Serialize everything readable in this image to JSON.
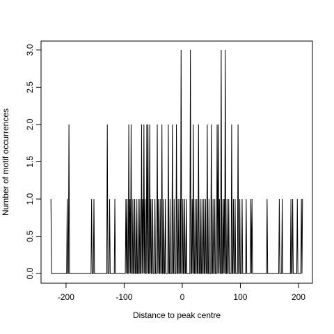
{
  "chart_data": {
    "type": "line",
    "xlabel": "Distance to peak centre",
    "ylabel": "Number of motif occurrences",
    "xlim": [
      -243,
      224
    ],
    "ylim": [
      -0.13,
      3.12
    ],
    "xticks": [
      -200,
      -100,
      0,
      100,
      200
    ],
    "yticks": [
      {
        "value": 0,
        "label": "0.0"
      },
      0.5,
      {
        "value": 1,
        "label": "1.0"
      },
      1.5,
      {
        "value": 2,
        "label": "2.0"
      },
      2.5,
      {
        "value": 3,
        "label": "3.0"
      }
    ],
    "color": "#000000",
    "x": [
      -226,
      -225,
      -199,
      -198,
      -197,
      -196,
      -195,
      -194,
      -157,
      -156,
      -155,
      -153,
      -152,
      -151,
      -130,
      -129,
      -128,
      -126,
      -125,
      -124,
      -117,
      -116,
      -115,
      -98,
      -97,
      -96,
      -95,
      -94,
      -93,
      -92,
      -91,
      -90,
      -89,
      -88,
      -87,
      -86,
      -85,
      -84,
      -83,
      -82,
      -81,
      -80,
      -79,
      -78,
      -77,
      -76,
      -75,
      -74,
      -73,
      -72,
      -71,
      -70,
      -69,
      -68,
      -67,
      -66,
      -65,
      -64,
      -63,
      -62,
      -61,
      -60,
      -59,
      -58,
      -57,
      -56,
      -55,
      -54,
      -53,
      -52,
      -51,
      -50,
      -48,
      -47,
      -46,
      -44,
      -43,
      -42,
      -41,
      -40,
      -39,
      -38,
      -37,
      -36,
      -35,
      -34,
      -33,
      -32,
      -31,
      -30,
      -29,
      -28,
      -25,
      -24,
      -23,
      -22,
      -21,
      -20,
      -18,
      -17,
      -16,
      -15,
      -14,
      -13,
      -11,
      -10,
      -9,
      -8,
      -7,
      -6,
      -5,
      -4,
      -3,
      -2,
      -1,
      0,
      1,
      2,
      3,
      4,
      5,
      6,
      7,
      8,
      13,
      14,
      15,
      16,
      17,
      18,
      19,
      20,
      21,
      22,
      23,
      24,
      25,
      26,
      27,
      28,
      29,
      30,
      31,
      32,
      33,
      34,
      35,
      36,
      37,
      38,
      39,
      40,
      41,
      42,
      43,
      44,
      45,
      46,
      47,
      49,
      50,
      51,
      52,
      53,
      54,
      55,
      56,
      57,
      59,
      60,
      61,
      62,
      63,
      64,
      65,
      66,
      67,
      68,
      69,
      70,
      71,
      72,
      73,
      74,
      75,
      76,
      77,
      78,
      79,
      80,
      81,
      84,
      85,
      86,
      87,
      88,
      89,
      90,
      91,
      92,
      95,
      96,
      97,
      98,
      99,
      100,
      102,
      103,
      104,
      109,
      110,
      111,
      117,
      118,
      119,
      120,
      121,
      145,
      146,
      147,
      166,
      167,
      168,
      171,
      172,
      173,
      186,
      187,
      188,
      189,
      190,
      191,
      197,
      198,
      199,
      204,
      205,
      206,
      207
    ],
    "values": [
      1,
      0,
      0,
      1,
      0,
      0,
      2,
      0,
      0,
      1,
      0,
      0,
      1,
      0,
      0,
      2,
      0,
      0,
      1,
      0,
      0,
      1,
      0,
      0,
      1,
      0,
      1,
      0,
      0,
      2,
      0,
      1,
      0,
      2,
      0,
      0,
      1,
      0,
      0,
      1,
      0,
      0,
      1,
      0,
      0,
      1,
      0,
      0,
      1,
      0,
      0,
      2,
      0,
      1,
      0,
      2,
      0,
      1,
      0,
      0,
      2,
      0,
      2,
      0,
      0,
      2,
      0,
      1,
      0,
      0,
      1,
      0,
      0,
      1,
      0,
      0,
      2,
      0,
      1,
      0,
      0,
      1,
      0,
      0,
      2,
      0,
      0,
      1,
      0,
      0,
      1,
      0,
      0,
      2,
      0,
      0,
      1,
      0,
      0,
      2,
      0,
      0,
      1,
      0,
      0,
      2,
      0,
      0,
      1,
      0,
      0,
      1,
      0,
      3,
      0,
      0,
      1,
      0,
      0,
      1,
      0,
      0,
      1,
      0,
      0,
      3,
      0,
      0,
      1,
      0,
      2,
      0,
      0,
      1,
      0,
      0,
      1,
      0,
      0,
      2,
      0,
      0,
      1,
      0,
      0,
      1,
      0,
      0,
      1,
      0,
      0,
      1,
      0,
      0,
      2,
      0,
      0,
      1,
      0,
      0,
      2,
      0,
      0,
      1,
      0,
      0,
      1,
      0,
      0,
      2,
      0,
      2,
      0,
      1,
      0,
      0,
      3,
      0,
      0,
      1,
      0,
      1,
      0,
      3,
      0,
      0,
      1,
      0,
      0,
      1,
      0,
      0,
      2,
      0,
      0,
      1,
      0,
      0,
      1,
      0,
      0,
      2,
      0,
      0,
      1,
      0,
      0,
      1,
      0,
      0,
      1,
      0,
      0,
      1,
      0,
      1,
      0,
      0,
      1,
      0,
      0,
      1,
      0,
      0,
      1,
      0,
      0,
      1,
      0,
      0,
      1,
      0,
      0,
      1,
      0,
      0,
      1,
      0,
      1
    ]
  }
}
